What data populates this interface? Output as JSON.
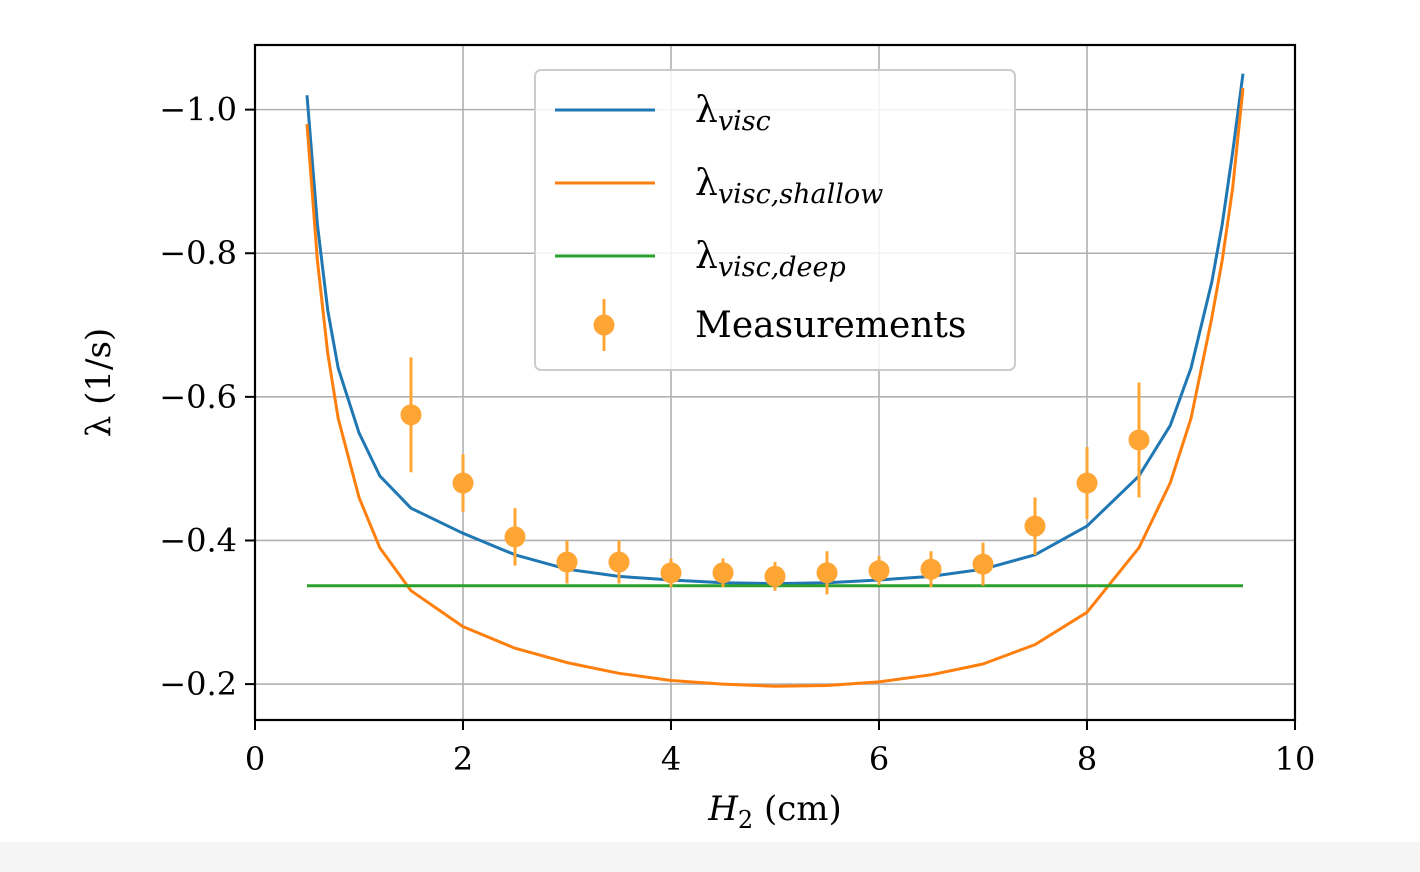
{
  "chart_data": {
    "type": "line",
    "title": "",
    "xlabel": {
      "main": "H",
      "sub": "2",
      "rest": " (cm)"
    },
    "ylabel": "λ (1/s)",
    "xlim": [
      0,
      10
    ],
    "ylim": [
      -0.15,
      -1.09
    ],
    "y_inverted": true,
    "grid": true,
    "legend_placement": "top-center",
    "x_ticks": [
      0,
      2,
      4,
      6,
      8,
      10
    ],
    "x_tick_labels": [
      "0",
      "2",
      "4",
      "6",
      "8",
      "10"
    ],
    "y_ticks": [
      -1.0,
      -0.8,
      -0.6,
      -0.4,
      -0.2
    ],
    "y_tick_labels": [
      "−1.0",
      "−0.8",
      "−0.6",
      "−0.4",
      "−0.2"
    ],
    "series": [
      {
        "name": "λvisc",
        "legend": {
          "main": "λ",
          "sub": "visc"
        },
        "color": "#1f77b4",
        "kind": "line",
        "x": [
          0.5,
          0.6,
          0.7,
          0.8,
          1.0,
          1.2,
          1.5,
          2.0,
          2.5,
          3.0,
          3.5,
          4.0,
          4.5,
          5.0,
          5.5,
          6.0,
          6.5,
          7.0,
          7.5,
          8.0,
          8.5,
          8.8,
          9.0,
          9.2,
          9.3,
          9.4,
          9.5
        ],
        "y": [
          -1.02,
          -0.84,
          -0.72,
          -0.64,
          -0.55,
          -0.49,
          -0.445,
          -0.41,
          -0.38,
          -0.36,
          -0.35,
          -0.345,
          -0.341,
          -0.34,
          -0.341,
          -0.345,
          -0.35,
          -0.36,
          -0.38,
          -0.42,
          -0.49,
          -0.56,
          -0.64,
          -0.76,
          -0.84,
          -0.94,
          -1.05
        ]
      },
      {
        "name": "λvisc,shallow",
        "legend": {
          "main": "λ",
          "sub": "visc,shallow"
        },
        "color": "#ff7f0e",
        "kind": "line",
        "x": [
          0.5,
          0.6,
          0.7,
          0.8,
          1.0,
          1.2,
          1.5,
          2.0,
          2.5,
          3.0,
          3.5,
          4.0,
          4.5,
          5.0,
          5.5,
          6.0,
          6.5,
          7.0,
          7.5,
          8.0,
          8.5,
          8.8,
          9.0,
          9.2,
          9.3,
          9.4,
          9.5
        ],
        "y": [
          -0.98,
          -0.79,
          -0.66,
          -0.57,
          -0.46,
          -0.39,
          -0.33,
          -0.28,
          -0.25,
          -0.23,
          -0.215,
          -0.205,
          -0.2,
          -0.197,
          -0.198,
          -0.203,
          -0.213,
          -0.228,
          -0.255,
          -0.3,
          -0.39,
          -0.48,
          -0.57,
          -0.71,
          -0.79,
          -0.89,
          -1.03
        ]
      },
      {
        "name": "λvisc,deep",
        "legend": {
          "main": "λ",
          "sub": "visc,deep"
        },
        "color": "#2ca02c",
        "kind": "line",
        "x": [
          0.5,
          9.5
        ],
        "y": [
          -0.337,
          -0.337
        ]
      },
      {
        "name": "Measurements",
        "legend": {
          "main": "Measurements",
          "sub": ""
        },
        "color": "#ffa533",
        "kind": "errorbar",
        "x": [
          1.5,
          2.0,
          2.5,
          3.0,
          3.5,
          4.0,
          4.5,
          5.0,
          5.5,
          6.0,
          6.5,
          7.0,
          7.5,
          8.0,
          8.5
        ],
        "y": [
          -0.575,
          -0.48,
          -0.405,
          -0.37,
          -0.37,
          -0.355,
          -0.355,
          -0.35,
          -0.355,
          -0.358,
          -0.36,
          -0.367,
          -0.42,
          -0.48,
          -0.54
        ],
        "err": [
          0.08,
          0.04,
          0.04,
          0.03,
          0.03,
          0.02,
          0.02,
          0.02,
          0.03,
          0.02,
          0.025,
          0.03,
          0.04,
          0.05,
          0.08
        ]
      }
    ]
  }
}
